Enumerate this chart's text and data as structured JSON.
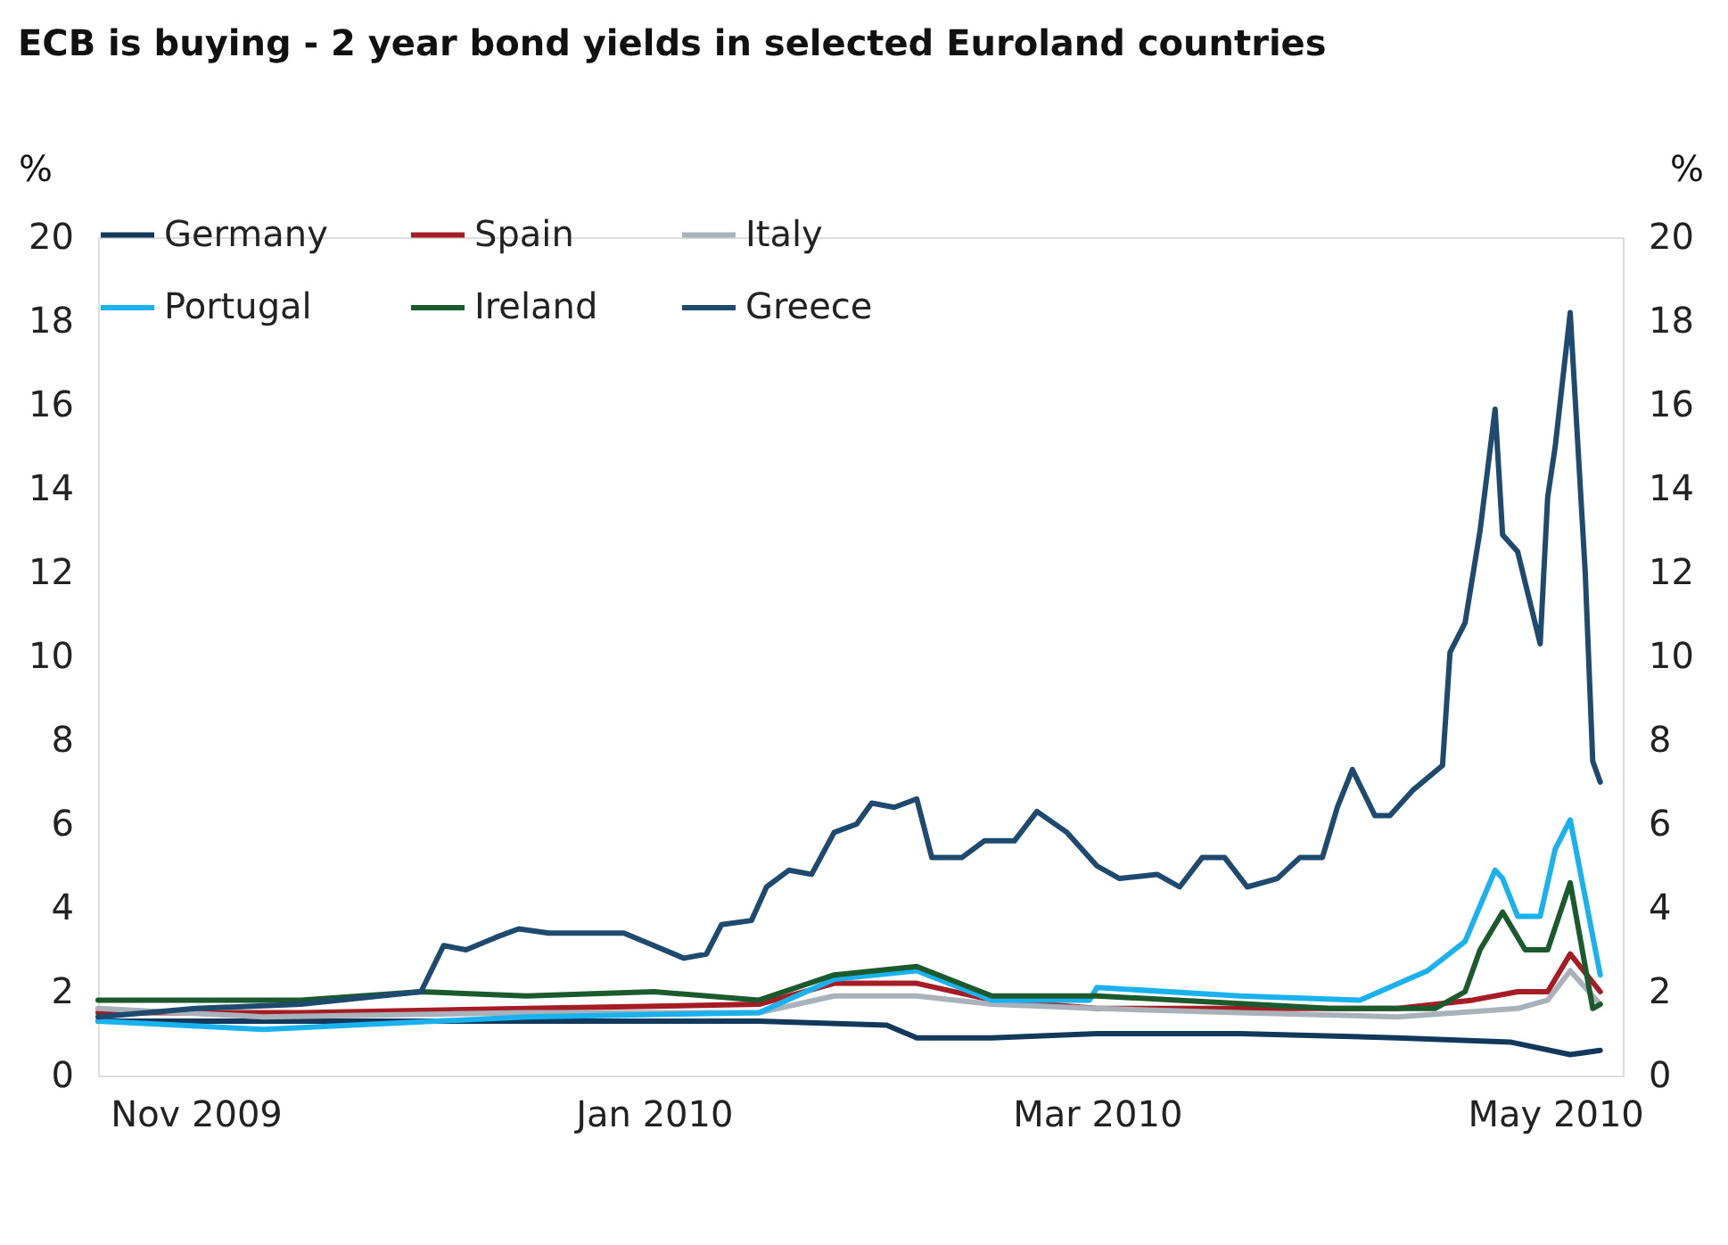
{
  "chart_data": {
    "type": "line",
    "title": "ECB is buying - 2 year bond yields in selected Euroland countries",
    "ylabel": "%",
    "y2label": "%",
    "xlim": [
      "2009-10-19",
      "2010-05-10"
    ],
    "xticks": [
      {
        "value": "2009-11-01",
        "label": "Nov 2009"
      },
      {
        "value": "2010-01-01",
        "label": "Jan 2010"
      },
      {
        "value": "2010-03-01",
        "label": "Mar 2010"
      },
      {
        "value": "2010-05-01",
        "label": "May 2010"
      }
    ],
    "ylim": [
      0,
      20
    ],
    "yticks": [
      0,
      2,
      4,
      6,
      8,
      10,
      12,
      14,
      16,
      18,
      20
    ],
    "y2lim": [
      0,
      20
    ],
    "y2ticks": [
      0,
      2,
      4,
      6,
      8,
      10,
      12,
      14,
      16,
      18,
      20
    ],
    "grid": false,
    "legend": "top",
    "line_style": "solid",
    "marker": "none",
    "series": [
      {
        "name": "Germany",
        "color": "#12395b",
        "x": [
          "2009-10-19",
          "2009-11-15",
          "2009-12-15",
          "2010-01-15",
          "2010-02-01",
          "2010-02-05",
          "2010-02-15",
          "2010-03-01",
          "2010-03-20",
          "2010-04-10",
          "2010-04-25",
          "2010-05-03",
          "2010-05-07"
        ],
        "values": [
          1.3,
          1.3,
          1.3,
          1.3,
          1.2,
          0.9,
          0.9,
          1.0,
          1.0,
          0.9,
          0.8,
          0.5,
          0.6
        ]
      },
      {
        "name": "Spain",
        "color": "#a51c24",
        "x": [
          "2009-10-19",
          "2009-11-15",
          "2009-12-15",
          "2010-01-15",
          "2010-01-25",
          "2010-02-05",
          "2010-02-15",
          "2010-03-01",
          "2010-03-20",
          "2010-04-10",
          "2010-04-20",
          "2010-04-26",
          "2010-04-30",
          "2010-05-03",
          "2010-05-07"
        ],
        "values": [
          1.5,
          1.5,
          1.6,
          1.7,
          2.2,
          2.2,
          1.8,
          1.6,
          1.6,
          1.6,
          1.8,
          2.0,
          2.0,
          2.9,
          2.0
        ]
      },
      {
        "name": "Italy",
        "color": "#a9b1ba",
        "x": [
          "2009-10-19",
          "2009-11-10",
          "2009-12-15",
          "2010-01-15",
          "2010-01-25",
          "2010-02-05",
          "2010-02-15",
          "2010-03-01",
          "2010-03-20",
          "2010-04-10",
          "2010-04-26",
          "2010-04-30",
          "2010-05-03",
          "2010-05-07"
        ],
        "values": [
          1.6,
          1.4,
          1.5,
          1.5,
          1.9,
          1.9,
          1.7,
          1.6,
          1.5,
          1.4,
          1.6,
          1.8,
          2.5,
          1.7
        ]
      },
      {
        "name": "Portugal",
        "color": "#1ab2ee",
        "x": [
          "2009-10-19",
          "2009-11-10",
          "2009-12-15",
          "2010-01-15",
          "2010-01-25",
          "2010-02-05",
          "2010-02-15",
          "2010-02-28",
          "2010-03-01",
          "2010-03-20",
          "2010-04-05",
          "2010-04-14",
          "2010-04-19",
          "2010-04-23",
          "2010-04-24",
          "2010-04-26",
          "2010-04-29",
          "2010-05-01",
          "2010-05-03",
          "2010-05-07"
        ],
        "values": [
          1.3,
          1.1,
          1.4,
          1.5,
          2.3,
          2.5,
          1.8,
          1.8,
          2.1,
          1.9,
          1.8,
          2.5,
          3.2,
          4.9,
          4.7,
          3.8,
          3.8,
          5.4,
          6.1,
          2.4
        ]
      },
      {
        "name": "Ireland",
        "color": "#1b5a2d",
        "x": [
          "2009-10-19",
          "2009-11-15",
          "2009-12-01",
          "2009-12-15",
          "2010-01-01",
          "2010-01-15",
          "2010-01-25",
          "2010-02-05",
          "2010-02-15",
          "2010-03-01",
          "2010-04-01",
          "2010-04-15",
          "2010-04-19",
          "2010-04-21",
          "2010-04-24",
          "2010-04-27",
          "2010-04-30",
          "2010-05-03",
          "2010-05-06",
          "2010-05-07"
        ],
        "values": [
          1.8,
          1.8,
          2.0,
          1.9,
          2.0,
          1.8,
          2.4,
          2.6,
          1.9,
          1.9,
          1.6,
          1.6,
          2.0,
          3.0,
          3.9,
          3.0,
          3.0,
          4.6,
          1.6,
          1.7
        ]
      },
      {
        "name": "Greece",
        "color": "#1d4a6e",
        "x": [
          "2009-10-19",
          "2009-11-01",
          "2009-11-15",
          "2009-12-01",
          "2009-12-04",
          "2009-12-07",
          "2009-12-11",
          "2009-12-14",
          "2009-12-18",
          "2009-12-28",
          "2010-01-01",
          "2010-01-05",
          "2010-01-08",
          "2010-01-10",
          "2010-01-14",
          "2010-01-16",
          "2010-01-19",
          "2010-01-22",
          "2010-01-25",
          "2010-01-28",
          "2010-01-30",
          "2010-02-02",
          "2010-02-05",
          "2010-02-07",
          "2010-02-11",
          "2010-02-14",
          "2010-02-18",
          "2010-02-21",
          "2010-02-25",
          "2010-03-01",
          "2010-03-04",
          "2010-03-09",
          "2010-03-12",
          "2010-03-15",
          "2010-03-18",
          "2010-03-21",
          "2010-03-25",
          "2010-03-28",
          "2010-03-31",
          "2010-04-02",
          "2010-04-04",
          "2010-04-07",
          "2010-04-09",
          "2010-04-12",
          "2010-04-16",
          "2010-04-17",
          "2010-04-19",
          "2010-04-21",
          "2010-04-23",
          "2010-04-24",
          "2010-04-26",
          "2010-04-29",
          "2010-04-30",
          "2010-05-01",
          "2010-05-03",
          "2010-05-05",
          "2010-05-06",
          "2010-05-07"
        ],
        "values": [
          1.4,
          1.6,
          1.7,
          2.0,
          3.1,
          3.0,
          3.3,
          3.5,
          3.4,
          3.4,
          3.1,
          2.8,
          2.9,
          3.6,
          3.7,
          4.5,
          4.9,
          4.8,
          5.8,
          6.0,
          6.5,
          6.4,
          6.6,
          5.2,
          5.2,
          5.6,
          5.6,
          6.3,
          5.8,
          5.0,
          4.7,
          4.8,
          4.5,
          5.2,
          5.2,
          4.5,
          4.7,
          5.2,
          5.2,
          6.4,
          7.3,
          6.2,
          6.2,
          6.8,
          7.4,
          10.1,
          10.8,
          13.0,
          15.9,
          12.9,
          12.5,
          10.3,
          13.8,
          15.0,
          18.2,
          12.0,
          7.5,
          7.0
        ]
      }
    ]
  }
}
